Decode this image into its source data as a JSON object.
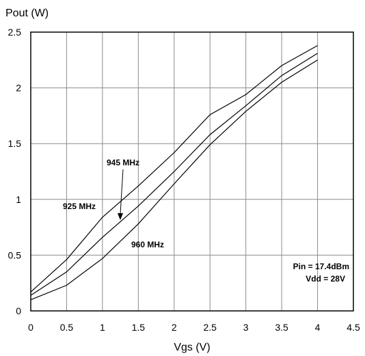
{
  "chart_data": {
    "type": "line",
    "title": "",
    "xlabel": "Vgs (V)",
    "ylabel": "Pout (W)",
    "xlim": [
      0,
      4.5
    ],
    "ylim": [
      0,
      2.5
    ],
    "xticks": [
      "0",
      "0.5",
      "1",
      "1.5",
      "2",
      "2.5",
      "3",
      "3.5",
      "4",
      "4.5"
    ],
    "yticks": [
      "0",
      "0.5",
      "1",
      "1.5",
      "2",
      "2.5"
    ],
    "grid": true,
    "series": [
      {
        "name": "925 MHz",
        "x": [
          0,
          0.5,
          1,
          1.5,
          2,
          2.5,
          3,
          3.5,
          4
        ],
        "y": [
          0.17,
          0.46,
          0.84,
          1.12,
          1.42,
          1.76,
          1.94,
          2.2,
          2.38
        ]
      },
      {
        "name": "945 MHz",
        "x": [
          0,
          0.5,
          1,
          1.5,
          2,
          2.5,
          3,
          3.5,
          4
        ],
        "y": [
          0.14,
          0.35,
          0.66,
          0.94,
          1.25,
          1.58,
          1.84,
          2.11,
          2.31
        ]
      },
      {
        "name": "960 MHz",
        "x": [
          0,
          0.5,
          1,
          1.5,
          2,
          2.5,
          3,
          3.5,
          4
        ],
        "y": [
          0.1,
          0.23,
          0.47,
          0.78,
          1.14,
          1.49,
          1.79,
          2.05,
          2.25
        ]
      }
    ],
    "annotations": {
      "pin": "Pin = 17.4dBm",
      "vdd": "Vdd = 28V"
    }
  }
}
